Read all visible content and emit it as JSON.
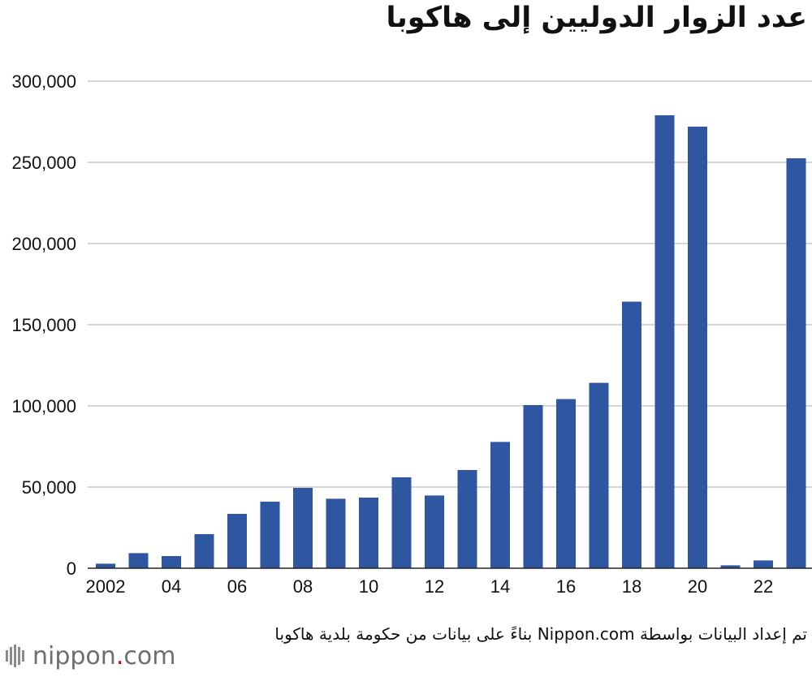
{
  "chart_data": {
    "type": "bar",
    "title": "عدد الزوار الدوليين إلى هاكوبا",
    "xlabel": "",
    "ylabel": "",
    "ylim": [
      0,
      300000
    ],
    "yticks": [
      {
        "value": 0,
        "label": "0"
      },
      {
        "value": 50000,
        "label": "50,000"
      },
      {
        "value": 100000,
        "label": "100,000"
      },
      {
        "value": 150000,
        "label": "150,000"
      },
      {
        "value": 200000,
        "label": "200,000"
      },
      {
        "value": 250000,
        "label": "250,000"
      },
      {
        "value": 300000,
        "label": "300,000"
      }
    ],
    "grid": true,
    "bar_color": "#2e56a1",
    "categories": [
      "2002",
      "2003",
      "2004",
      "2005",
      "2006",
      "2007",
      "2008",
      "2009",
      "2010",
      "2011",
      "2012",
      "2013",
      "2014",
      "2015",
      "2016",
      "2017",
      "2018",
      "2019",
      "2020",
      "2021",
      "2022",
      "2023"
    ],
    "tick_labels": [
      "2002",
      "",
      "04",
      "",
      "06",
      "",
      "08",
      "",
      "10",
      "",
      "12",
      "",
      "14",
      "",
      "16",
      "",
      "18",
      "",
      "20",
      "",
      "22",
      ""
    ],
    "values": [
      2800,
      9300,
      7500,
      21000,
      33500,
      41000,
      49500,
      42800,
      43500,
      56000,
      44800,
      60500,
      77800,
      100500,
      104200,
      114200,
      164200,
      279000,
      272000,
      1800,
      4800,
      252500
    ]
  },
  "footer": {
    "source_text": "تم إعداد البيانات بواسطة Nippon.com بناءً على بيانات من حكومة بلدية هاكوبا",
    "logo_name": "nippon",
    "logo_dot": ".",
    "logo_tld": "com"
  }
}
